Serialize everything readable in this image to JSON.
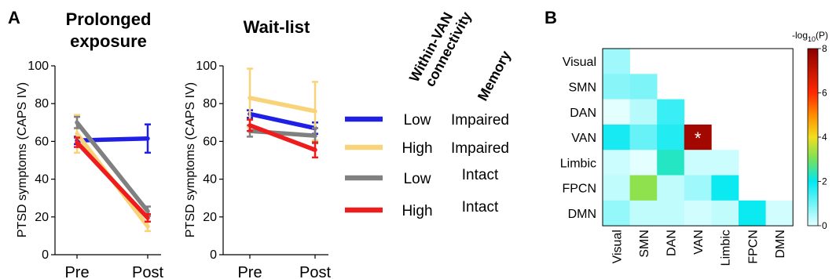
{
  "labels": {
    "panel_a": "A",
    "panel_b": "B"
  },
  "chart_data": [
    {
      "type": "line",
      "title": "Prolonged exposure",
      "title_lines": [
        "Prolonged",
        "exposure"
      ],
      "ylabel": "PTSD symptoms (CAPS IV)",
      "xlabel": "",
      "categories": [
        "Pre",
        "Post"
      ],
      "ylim": [
        0,
        100
      ],
      "yticks": [
        0,
        20,
        40,
        60,
        80,
        100
      ],
      "series": [
        {
          "group": "Low / Impaired",
          "color": "#1f1fe6",
          "values": [
            60.5,
            61.5
          ],
          "errors": [
            2,
            7.5
          ]
        },
        {
          "group": "High / Impaired",
          "color": "#f8d37a",
          "values": [
            64,
            15
          ],
          "errors": [
            10,
            2.5
          ]
        },
        {
          "group": "Low / Intact",
          "color": "#808080",
          "values": [
            70,
            23
          ],
          "errors": [
            3,
            2.5
          ]
        },
        {
          "group": "High / Intact",
          "color": "#ee1c1c",
          "values": [
            59.5,
            19.5
          ],
          "errors": [
            2.5,
            2
          ]
        }
      ]
    },
    {
      "type": "line",
      "title": "Wait-list",
      "title_lines": [
        "Wait-list"
      ],
      "ylabel": "PTSD symptoms (CAPS IV)",
      "xlabel": "",
      "categories": [
        "Pre",
        "Post"
      ],
      "ylim": [
        0,
        100
      ],
      "yticks": [
        0,
        20,
        40,
        60,
        80,
        100
      ],
      "series": [
        {
          "group": "Low / Impaired",
          "color": "#1f1fe6",
          "values": [
            74.5,
            67
          ],
          "errors": [
            2,
            3
          ]
        },
        {
          "group": "High / Impaired",
          "color": "#f8d37a",
          "values": [
            83,
            76
          ],
          "errors": [
            15.5,
            15.5
          ]
        },
        {
          "group": "Low / Intact",
          "color": "#808080",
          "values": [
            65.5,
            63
          ],
          "errors": [
            3,
            4
          ]
        },
        {
          "group": "High / Intact",
          "color": "#ee1c1c",
          "values": [
            68.5,
            55.5
          ],
          "errors": [
            3,
            4
          ]
        }
      ]
    },
    {
      "type": "heatmap",
      "colorbar_label": "-log10(P)",
      "colorbar_label_parts": {
        "pre": "-log",
        "sub": "10",
        "post": "(P)"
      },
      "colorbar_range": [
        0,
        8
      ],
      "colorbar_ticks": [
        0,
        2,
        4,
        6,
        8
      ],
      "rows": [
        "Visual",
        "SMN",
        "DAN",
        "VAN",
        "Limbic",
        "FPCN",
        "DMN"
      ],
      "cols": [
        "Visual",
        "SMN",
        "DAN",
        "VAN",
        "Limbic",
        "FPCN",
        "DMN"
      ],
      "matrix": [
        [
          0.6,
          null,
          null,
          null,
          null,
          null,
          null
        ],
        [
          0.8,
          0.9,
          null,
          null,
          null,
          null,
          null
        ],
        [
          0.0,
          0.4,
          1.5,
          null,
          null,
          null,
          null
        ],
        [
          1.8,
          1.1,
          1.7,
          7.6,
          null,
          null,
          null
        ],
        [
          0.2,
          0.0,
          2.3,
          0.2,
          0.2,
          null,
          null
        ],
        [
          0.3,
          3.2,
          0.3,
          0.6,
          1.9,
          null,
          null
        ],
        [
          0.7,
          0.3,
          0.3,
          0.15,
          0.3,
          1.9,
          0.15
        ]
      ],
      "significant": [
        {
          "row": "VAN",
          "col": "VAN",
          "mark": "*"
        }
      ]
    }
  ],
  "legend": {
    "headers": [
      "Within-VAN connectivity",
      "Memory"
    ],
    "header_lines": [
      [
        "Within-VAN",
        "connectivity"
      ],
      [
        "Memory"
      ]
    ],
    "entries": [
      {
        "connectivity": "Low",
        "memory": "Impaired",
        "color": "#1f1fe6"
      },
      {
        "connectivity": "High",
        "memory": "Impaired",
        "color": "#f8d37a"
      },
      {
        "connectivity": "Low",
        "memory": "Intact",
        "color": "#808080"
      },
      {
        "connectivity": "High",
        "memory": "Intact",
        "color": "#ee1c1c"
      }
    ]
  }
}
